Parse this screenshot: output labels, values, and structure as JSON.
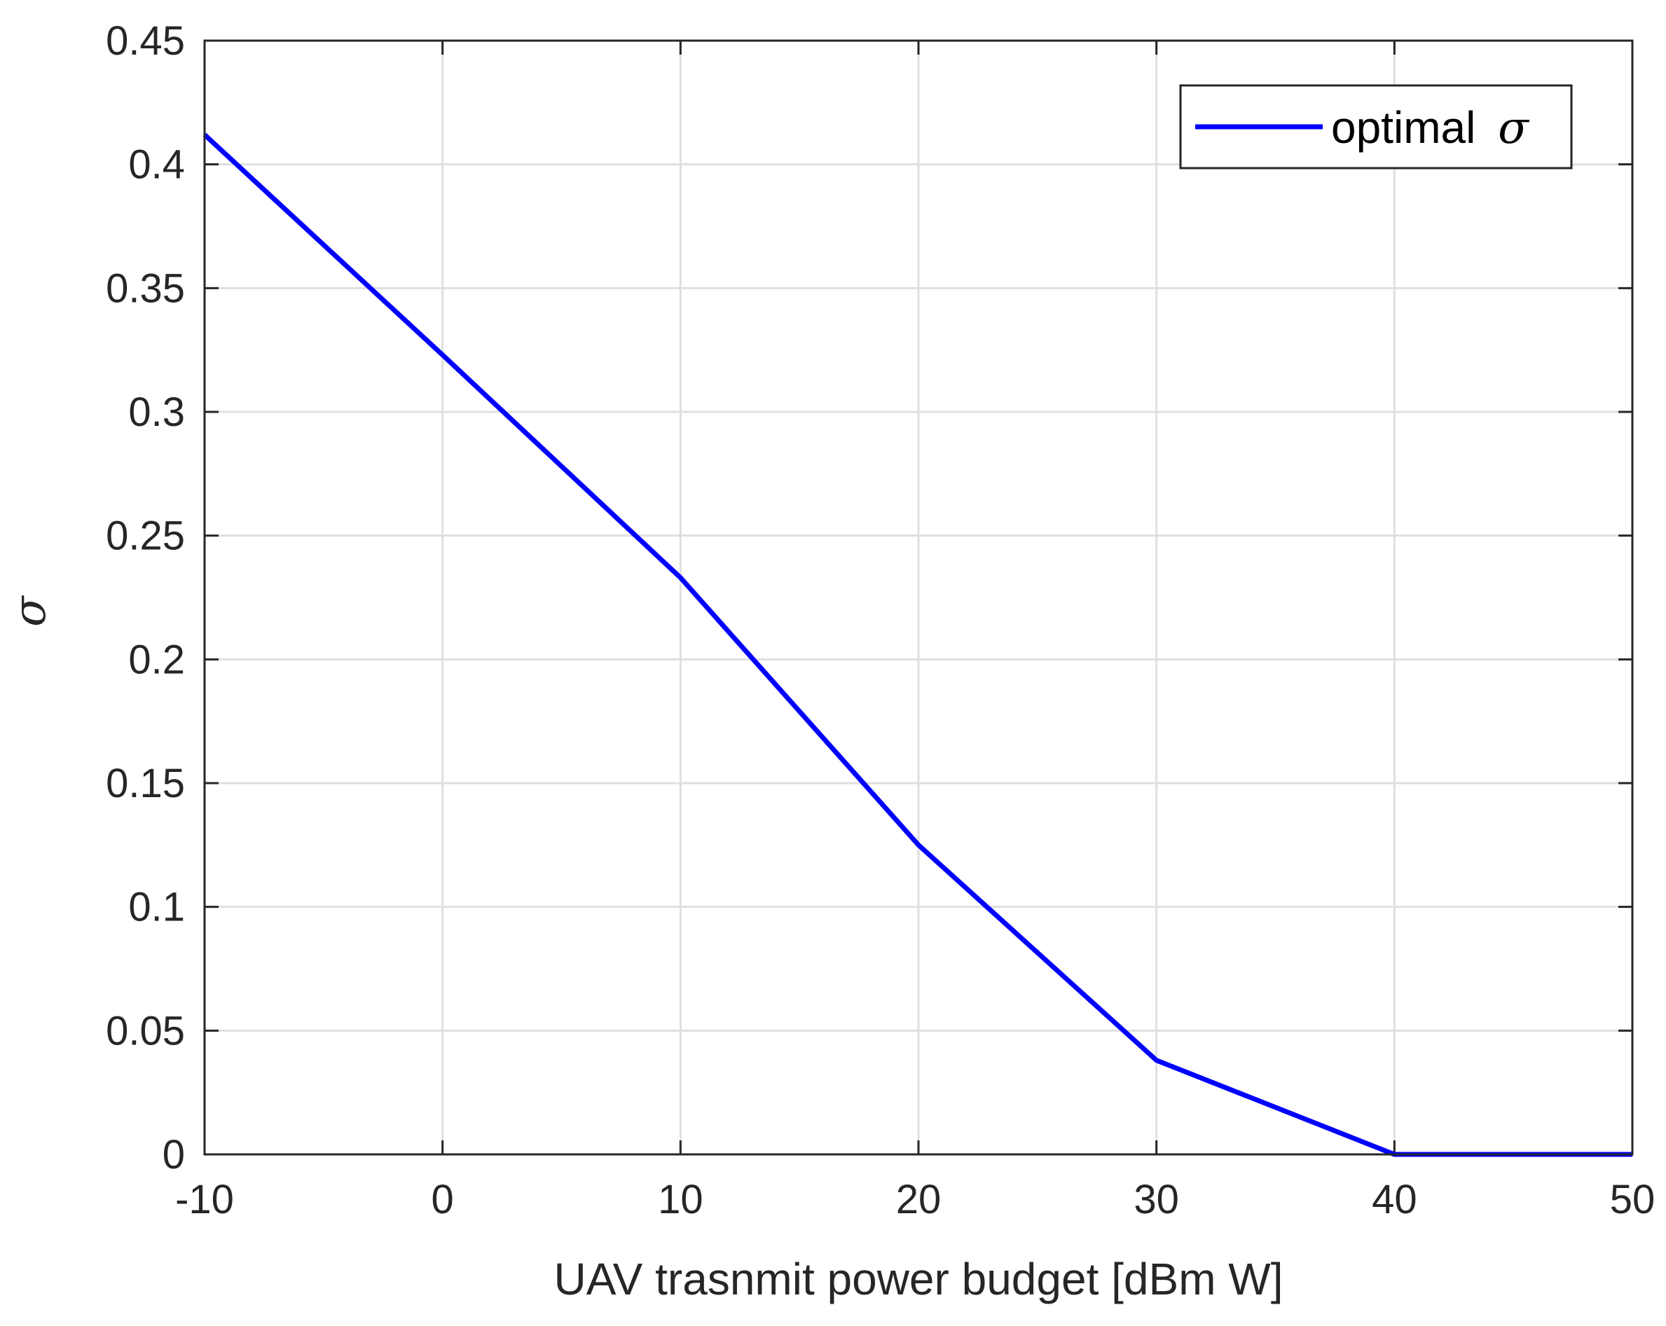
{
  "chart_data": {
    "type": "line",
    "title": "",
    "xlabel": "UAV trasnmit power budget [dBm W]",
    "ylabel": "σ",
    "xlim": [
      -10,
      50
    ],
    "ylim": [
      0,
      0.45
    ],
    "grid": true,
    "x_ticks": [
      -10,
      0,
      10,
      20,
      30,
      40,
      50
    ],
    "x_tick_labels": [
      "-10",
      "0",
      "10",
      "20",
      "30",
      "40",
      "50"
    ],
    "y_ticks": [
      0,
      0.05,
      0.1,
      0.15,
      0.2,
      0.25,
      0.3,
      0.35,
      0.4,
      0.45
    ],
    "y_tick_labels": [
      "0",
      "0.05",
      "0.1",
      "0.15",
      "0.2",
      "0.25",
      "0.3",
      "0.35",
      "0.4",
      "0.45"
    ],
    "legend_position": "top-right",
    "series": [
      {
        "name": "optimal σ",
        "legend_text": "optimal",
        "legend_symbol": "σ",
        "color": "#0000ff",
        "x": [
          -10,
          0,
          10,
          20,
          30,
          40,
          50
        ],
        "y": [
          0.412,
          0.323,
          0.233,
          0.125,
          0.038,
          0.0,
          0.0
        ]
      }
    ]
  }
}
